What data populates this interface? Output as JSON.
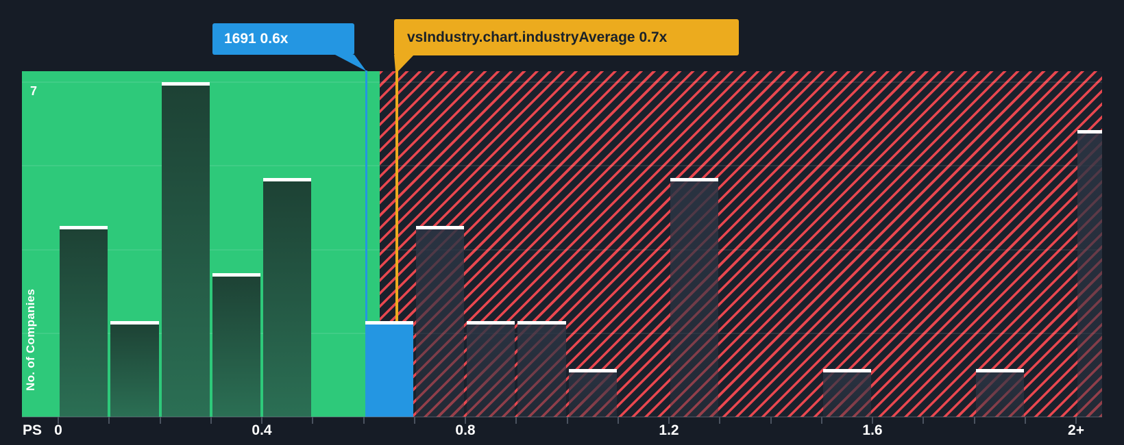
{
  "page": {
    "background": "#161c26"
  },
  "colors": {
    "accent_blue": "#2496e2",
    "accent_yellow": "#ecab1e",
    "zone_green": "#2ec97a",
    "hatch_red": "#e8474f",
    "hatch_bg": "#1a212c",
    "text_light": "#ffffff",
    "text_dark": "#1a2129"
  },
  "tooltips": {
    "company": {
      "text": "1691 0.6x",
      "bg": "#2496e2",
      "text_color": "#ffffff"
    },
    "industry": {
      "text": "vsIndustry.chart.industryAverage 0.7x",
      "bg": "#ecab1e",
      "text_color": "#1a2129"
    }
  },
  "y_axis": {
    "title": "No. of Companies",
    "top_label": "7"
  },
  "x_axis": {
    "prefix_label": "PS",
    "tick_labels": [
      {
        "text": "0",
        "v": 0.0
      },
      {
        "text": "0.4",
        "v": 0.4
      },
      {
        "text": "0.8",
        "v": 0.8
      },
      {
        "text": "1.2",
        "v": 1.2
      },
      {
        "text": "1.6",
        "v": 1.6
      },
      {
        "text": "2+",
        "v": 2.0
      }
    ]
  },
  "chart_data": {
    "type": "bar",
    "subtype": "histogram",
    "xlabel": "PS",
    "ylabel": "No. of Companies",
    "ylim": [
      0,
      7
    ],
    "xlim": [
      0,
      2
    ],
    "bin_width": 0.1,
    "bin_starts": [
      0.0,
      0.1,
      0.2,
      0.3,
      0.4,
      0.5,
      0.6,
      0.7,
      0.8,
      0.9,
      1.0,
      1.1,
      1.2,
      1.3,
      1.4,
      1.5,
      1.6,
      1.7,
      1.8,
      1.9,
      2.0
    ],
    "counts": [
      4,
      2,
      7,
      3,
      5,
      0,
      2,
      4,
      2,
      2,
      1,
      0,
      5,
      0,
      0,
      1,
      0,
      0,
      1,
      0,
      6
    ],
    "last_bin_open_ended": true,
    "company_marker": {
      "label": "1691",
      "value": 0.6,
      "bin_start": 0.6,
      "bin_count": 2,
      "color": "#2496e2"
    },
    "industry_average_marker": {
      "label": "vsIndustry.chart.industryAverage",
      "value": 0.7,
      "color": "#ecab1e"
    },
    "zones": {
      "below_average_color": "#2ec97a",
      "above_average_style": "red diagonal hatch"
    },
    "grid": "horizontal quarter lines",
    "legend": "none"
  }
}
